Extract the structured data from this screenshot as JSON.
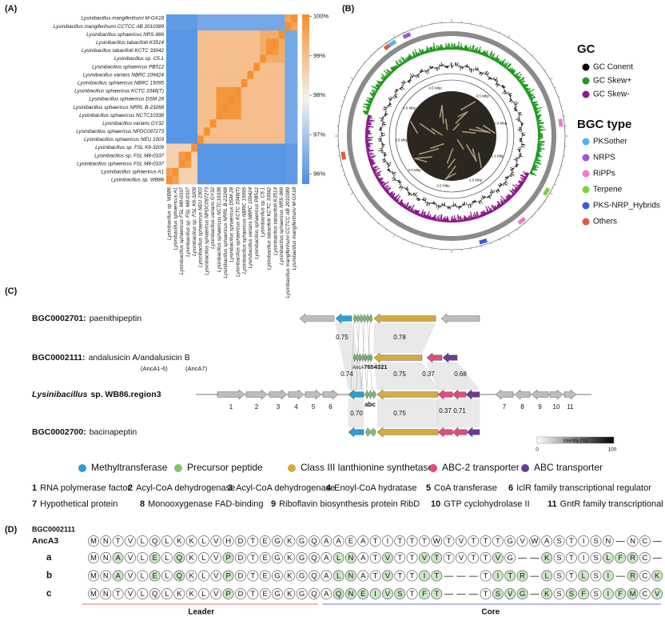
{
  "panels": {
    "a": "(A)",
    "b": "(B)",
    "c": "(C)",
    "d": "(D)"
  },
  "heatmap": {
    "row_labels": [
      "Lysinibacillus mangiferihumi M-GX18",
      "Lysinibacillus mangiferihumi CCTCC AB 2010389",
      "Lysinibacillus sphaericus NRS-966",
      "Lysinibacillus tabacifolii K3514",
      "Lysinibacillus tabacifolii KCTC 33042",
      "Lysinibacillus sp. C5.1",
      "Lysinibacillus sphaericus PB512",
      "Lysinibacillus varians NBRC 109424",
      "Lysinibacillus sphaericus NBRC 15095",
      "Lysinibacillus sphaericus KCTC 3346(T)",
      "Lysinibacillus sphaericus DSM 28",
      "Lysinibacillus sphaericus NRRL B-23268",
      "Lysinibacillus sphaericus NCTC10338",
      "Lysinibacillus varians GY32",
      "Lysinibacillus sphaericus NPDC097273",
      "Lysinibacillus sphaericus NEU 1003",
      "Lysinibacillus sp. FSL K6-3209",
      "Lysinibacillus sp. FSL M8-0337",
      "Lysinibacillus sphaericus FSL M8-0337",
      "Lysinibacillus sphaericus A1",
      "Lysinibacillus sp. WB86"
    ],
    "col_labels": [
      "Lysinibacillus sp. WB86",
      "Lysinibacillus sphaericus A1",
      "Lysinibacillus sphaericus FSL M8-0337",
      "Lysinibacillus sp. FSL M8-0337",
      "Lysinibacillus sp. FSL K6-3209",
      "Lysinibacillus sphaericus NEU 1003",
      "Lysinibacillus sphaericus NPDC097273",
      "Lysinibacillus varians GY32",
      "Lysinibacillus sphaericus NCTC10338",
      "Lysinibacillus sphaericus NRRL B-23268",
      "Lysinibacillus sphaericus DSM 28",
      "Lysinibacillus sphaericus KCTC 3346(T)",
      "Lysinibacillus sphaericus NBRC 15095",
      "Lysinibacillus varians NBRC 109424",
      "Lysinibacillus sphaericus PB512",
      "Lysinibacillus sp. C5.1",
      "Lysinibacillus tabacifolii KCTC 33042",
      "Lysinibacillus tabacifolii K3514",
      "Lysinibacillus sphaericus NRS-966",
      "Lysinibacillus mangiferihumi CCTCC AB 2010389",
      "Lysinibacillus mangiferihumi M-GX18"
    ],
    "values": [
      [
        96,
        96,
        96,
        96,
        96,
        96.3,
        96.3,
        96.3,
        96.3,
        96.3,
        96.3,
        96.3,
        96.3,
        96.3,
        96.3,
        96.3,
        96.3,
        96.3,
        96.3,
        99.6,
        100
      ],
      [
        96,
        96,
        96,
        96,
        96,
        96.3,
        96.3,
        96.3,
        96.3,
        96.3,
        96.3,
        96.3,
        96.3,
        96.3,
        96.3,
        96.3,
        96.3,
        96.3,
        96.3,
        100,
        99.6
      ],
      [
        95.9,
        95.9,
        95.9,
        95.9,
        95.9,
        99,
        99,
        99,
        99,
        99,
        99,
        99,
        99,
        99,
        99,
        99.4,
        99.4,
        99.4,
        100,
        96.3,
        96.3
      ],
      [
        95.9,
        95.9,
        95.9,
        95.9,
        95.9,
        99,
        99,
        99,
        99,
        99,
        99,
        99,
        99,
        99,
        99,
        99.4,
        99.9,
        100,
        99.4,
        96.3,
        96.3
      ],
      [
        95.9,
        95.9,
        95.9,
        95.9,
        95.9,
        99,
        99,
        99,
        99,
        99,
        99,
        99,
        99,
        99,
        99,
        99.4,
        100,
        99.9,
        99.4,
        96.3,
        96.3
      ],
      [
        95.9,
        95.9,
        95.9,
        95.9,
        95.9,
        99,
        99,
        99,
        99,
        99,
        99,
        99,
        99,
        99,
        99,
        100,
        99.4,
        99.4,
        99.4,
        96.3,
        96.3
      ],
      [
        95.9,
        95.9,
        95.9,
        95.9,
        95.9,
        99,
        99,
        99,
        99,
        99,
        99,
        99,
        99,
        99,
        100,
        99,
        99,
        99,
        99,
        96.3,
        96.3
      ],
      [
        95.9,
        95.9,
        95.9,
        95.9,
        95.9,
        99,
        99,
        99,
        99,
        99,
        99,
        99,
        99,
        100,
        99,
        99,
        99,
        99,
        99,
        96.3,
        96.3
      ],
      [
        95.9,
        95.9,
        95.9,
        95.9,
        95.9,
        99,
        99,
        99,
        99,
        99,
        99,
        99,
        100,
        99,
        99,
        99,
        99,
        99,
        99,
        96.3,
        96.3
      ],
      [
        95.9,
        95.9,
        95.9,
        95.9,
        95.9,
        99,
        99,
        99,
        99.9,
        99.9,
        99.9,
        100,
        99,
        99,
        99,
        99,
        99,
        99,
        99,
        96.3,
        96.3
      ],
      [
        95.9,
        95.9,
        95.9,
        95.9,
        95.9,
        99,
        99,
        99,
        99.9,
        99.9,
        100,
        99.9,
        99,
        99,
        99,
        99,
        99,
        99,
        99,
        96.3,
        96.3
      ],
      [
        95.9,
        95.9,
        95.9,
        95.9,
        95.9,
        99,
        99,
        99,
        99.9,
        100,
        99.9,
        99.9,
        99,
        99,
        99,
        99,
        99,
        99,
        99,
        96.3,
        96.3
      ],
      [
        95.9,
        95.9,
        95.9,
        95.9,
        95.9,
        99,
        99,
        99,
        100,
        99.9,
        99.9,
        99.9,
        99,
        99,
        99,
        99,
        99,
        99,
        99,
        96.3,
        96.3
      ],
      [
        95.9,
        95.9,
        95.9,
        95.9,
        95.9,
        99,
        99,
        100,
        99,
        99,
        99,
        99,
        99,
        99,
        99,
        99,
        99,
        99,
        99,
        96.3,
        96.3
      ],
      [
        95.9,
        95.9,
        95.9,
        95.9,
        95.9,
        99,
        100,
        99,
        99,
        99,
        99,
        99,
        99,
        99,
        99,
        99,
        99,
        99,
        99,
        96.3,
        96.3
      ],
      [
        95.9,
        95.9,
        95.9,
        95.9,
        95.9,
        100,
        99,
        99,
        99,
        99,
        99,
        99,
        99,
        99,
        99,
        99,
        99,
        99,
        99,
        96.3,
        96.3
      ],
      [
        98.6,
        98.6,
        98.6,
        98.6,
        100,
        95.9,
        95.9,
        95.9,
        95.9,
        95.9,
        95.9,
        95.9,
        95.9,
        95.9,
        95.9,
        95.9,
        95.9,
        95.9,
        95.9,
        96,
        96
      ],
      [
        98.6,
        98.6,
        99.8,
        100,
        98.6,
        95.9,
        95.9,
        95.9,
        95.9,
        95.9,
        95.9,
        95.9,
        95.9,
        95.9,
        95.9,
        95.9,
        95.9,
        95.9,
        95.9,
        96,
        96
      ],
      [
        98.6,
        98.6,
        100,
        99.8,
        98.6,
        95.9,
        95.9,
        95.9,
        95.9,
        95.9,
        95.9,
        95.9,
        95.9,
        95.9,
        95.9,
        95.9,
        95.9,
        95.9,
        95.9,
        96,
        96
      ],
      [
        99.7,
        100,
        98.6,
        98.6,
        98.6,
        95.9,
        95.9,
        95.9,
        95.9,
        95.9,
        95.9,
        95.9,
        95.9,
        95.9,
        95.9,
        95.9,
        95.9,
        95.9,
        95.9,
        96,
        96
      ],
      [
        100,
        99.7,
        98.6,
        98.6,
        98.6,
        95.9,
        95.9,
        95.9,
        95.9,
        95.9,
        95.9,
        95.9,
        95.9,
        95.9,
        95.9,
        95.9,
        95.9,
        95.9,
        95.9,
        96,
        96
      ]
    ],
    "colorbar": {
      "lim": [
        95.75,
        100.05
      ],
      "colors": [
        "#4a8fe3",
        "#f2f1f0",
        "#f58f2e"
      ],
      "ticks": [
        {
          "value": 100,
          "label": "100%"
        },
        {
          "value": 99,
          "label": "99%"
        },
        {
          "value": 98,
          "label": "98%"
        },
        {
          "value": 97,
          "label": "97%"
        },
        {
          "value": 96,
          "label": "96%"
        }
      ]
    }
  },
  "genome": {
    "ring_labels": [
      "0.5 Mbp",
      "1.0 Mbp",
      "1.5 Mbp",
      "2.0 Mbp",
      "2.5 Mbp",
      "3.0 Mbp",
      "3.5 Mbp",
      "4.0 Mbp",
      "4.5 Mbp"
    ],
    "gc_title": "GC",
    "gc": [
      {
        "name": "GC Conent",
        "color": "#000000"
      },
      {
        "name": "GC Skew+",
        "color": "#1f9a1f"
      },
      {
        "name": "GC Skew-",
        "color": "#8a1a8a"
      }
    ],
    "bgc_title": "BGC type",
    "bgc": [
      {
        "name": "PKSother",
        "color": "#55b4e6"
      },
      {
        "name": "NRPS",
        "color": "#9b55d6"
      },
      {
        "name": "RiPPs",
        "color": "#f07cc6"
      },
      {
        "name": "Terpene",
        "color": "#78d23c"
      },
      {
        "name": "PKS-NRP_Hybrids",
        "color": "#3a58e0"
      },
      {
        "name": "Others",
        "color": "#e8573c"
      }
    ]
  },
  "clusters": {
    "rows": [
      {
        "id": "BGC0002701:",
        "name": "paenithipeptin"
      },
      {
        "id": "BGC0002111:",
        "name": "andalusicin A/andalusicin B",
        "notes": [
          "(AncA1-6)",
          "(AncA7)"
        ]
      },
      {
        "italic": "Lysinibacillus",
        "name": "sp. WB86.region3"
      },
      {
        "id": "BGC0002700:",
        "name": "bacinapeptin"
      }
    ],
    "identities": [
      [
        "0.75",
        "0.78"
      ],
      [
        "0.74",
        "0.75",
        "0.37",
        "0.68"
      ],
      [
        "0.70",
        "0.75",
        "0.37",
        "0.71"
      ]
    ],
    "precursor_top": [
      "AncA",
      "7654321"
    ],
    "precursor_bottom": "abc",
    "gene_numbers": [
      1,
      2,
      3,
      4,
      5,
      6,
      7,
      8,
      9,
      10,
      11
    ],
    "identity_scale": {
      "title": "Identity (%)",
      "min": 0,
      "max": 100
    },
    "legend": [
      {
        "name": "Methyltransferase",
        "color": "#2b9fcf"
      },
      {
        "name": "Precursor peptide",
        "color": "#7dc46b"
      },
      {
        "name": "Class III lanthionine synthetase",
        "color": "#d5ab3b"
      },
      {
        "name": "ABC-2 transporter",
        "color": "#e04b7c"
      },
      {
        "name": "ABC transporter",
        "color": "#6b3b95"
      }
    ],
    "genes": [
      {
        "number": 1,
        "text": "RNA polymerase factor"
      },
      {
        "number": 2,
        "text": "Acyl-CoA dehydrogenase"
      },
      {
        "number": 3,
        "text": "Acyl-CoA dehydrogenase"
      },
      {
        "number": 4,
        "text": "Enoyl-CoA hydratase"
      },
      {
        "number": 5,
        "text": "CoA transferase"
      },
      {
        "number": 6,
        "text": "IclR family transcriptional regulator"
      },
      {
        "number": 7,
        "text": "Hypothetical protein"
      },
      {
        "number": 8,
        "text": "Monooxygenase FAD-binding"
      },
      {
        "number": 9,
        "text": "Riboflavin biosynthesis protein RibD"
      },
      {
        "number": 10,
        "text": "GTP cyclohydrolase II"
      },
      {
        "number": 11,
        "text": "GntR family transcriptional regulator"
      }
    ]
  },
  "alignment": {
    "reference": {
      "id": "BGC0002111",
      "name": "AncA3",
      "residues": [
        "M",
        "N",
        "T",
        "V",
        "L",
        "Q",
        "L",
        "K",
        "K",
        "L",
        "V",
        "H",
        "D",
        "T",
        "E",
        "G",
        "K",
        "G",
        "Q",
        "A",
        "A",
        "E",
        "A",
        "T",
        "I",
        "T",
        "T",
        "T",
        "W",
        "T",
        "V",
        "T",
        "T",
        "T",
        "G",
        "V",
        "W",
        "A",
        "S",
        "T",
        "I",
        "S",
        "N",
        "—",
        "N",
        "C",
        "—"
      ]
    },
    "rows": [
      {
        "label": "a",
        "residues": [
          "M",
          "N",
          "A",
          "V",
          "L",
          "E",
          "L",
          "Q",
          "K",
          "L",
          "V",
          "P",
          "D",
          "T",
          "E",
          "G",
          "K",
          "G",
          "Q",
          "A",
          "L",
          "N",
          "A",
          "T",
          "V",
          "T",
          "T",
          "V",
          "T",
          "T",
          "V",
          "T",
          "T",
          "V",
          "G",
          "—",
          "—",
          "K",
          "S",
          "T",
          "I",
          "S",
          "L",
          "F",
          "R",
          "C",
          "—"
        ]
      },
      {
        "label": "b",
        "residues": [
          "M",
          "N",
          "A",
          "V",
          "L",
          "E",
          "L",
          "Q",
          "K",
          "L",
          "V",
          "P",
          "D",
          "T",
          "E",
          "G",
          "K",
          "G",
          "Q",
          "A",
          "L",
          "N",
          "A",
          "T",
          "V",
          "T",
          "T",
          "I",
          "T",
          "—",
          "—",
          "—",
          "T",
          "I",
          "T",
          "R",
          "—",
          "L",
          "S",
          "T",
          "L",
          "S",
          "I",
          "—",
          "R",
          "C",
          "K"
        ]
      },
      {
        "label": "c",
        "residues": [
          "M",
          "N",
          "T",
          "V",
          "L",
          "Q",
          "L",
          "K",
          "K",
          "L",
          "V",
          "P",
          "D",
          "T",
          "E",
          "G",
          "K",
          "G",
          "Q",
          "A",
          "Q",
          "N",
          "E",
          "I",
          "V",
          "S",
          "T",
          "F",
          "T",
          "—",
          "—",
          "—",
          "T",
          "S",
          "V",
          "G",
          "—",
          "K",
          "S",
          "S",
          "F",
          "S",
          "I",
          "F",
          "M",
          "C",
          "V"
        ]
      }
    ],
    "highlight_color": "#cde8c6",
    "regions": [
      {
        "name": "Leader",
        "color": "#e88a8a"
      },
      {
        "name": "Core",
        "color": "#8f95dd"
      }
    ]
  }
}
